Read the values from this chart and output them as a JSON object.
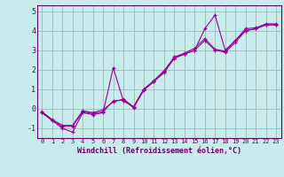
{
  "xlabel": "Windchill (Refroidissement éolien,°C)",
  "background_color": "#c8ecec",
  "grid_color": "#a0b8b8",
  "line_color": "#990099",
  "xlim": [
    -0.5,
    23.5
  ],
  "ylim": [
    -1.5,
    5.3
  ],
  "yticks": [
    -1,
    0,
    1,
    2,
    3,
    4,
    5
  ],
  "xticks": [
    0,
    1,
    2,
    3,
    4,
    5,
    6,
    7,
    8,
    9,
    10,
    11,
    12,
    13,
    14,
    15,
    16,
    17,
    18,
    19,
    20,
    21,
    22,
    23
  ],
  "series": [
    [
      -0.2,
      -0.6,
      -1.0,
      -1.2,
      -0.2,
      -0.3,
      -0.2,
      2.1,
      0.4,
      0.1,
      1.0,
      1.4,
      1.9,
      2.6,
      2.8,
      3.0,
      4.1,
      4.8,
      3.0,
      3.5,
      4.0,
      4.1,
      4.3,
      4.3
    ],
    [
      -0.2,
      -0.6,
      -0.9,
      -0.9,
      -0.15,
      -0.25,
      -0.15,
      0.4,
      0.45,
      0.05,
      0.95,
      1.4,
      1.85,
      2.6,
      2.8,
      3.0,
      3.5,
      3.0,
      2.9,
      3.4,
      4.0,
      4.1,
      4.3,
      4.3
    ],
    [
      -0.15,
      -0.55,
      -0.85,
      -0.85,
      -0.1,
      -0.2,
      -0.05,
      0.35,
      0.5,
      0.1,
      1.0,
      1.45,
      1.95,
      2.65,
      2.85,
      3.1,
      3.6,
      3.05,
      2.95,
      3.5,
      4.1,
      4.15,
      4.35,
      4.35
    ]
  ]
}
